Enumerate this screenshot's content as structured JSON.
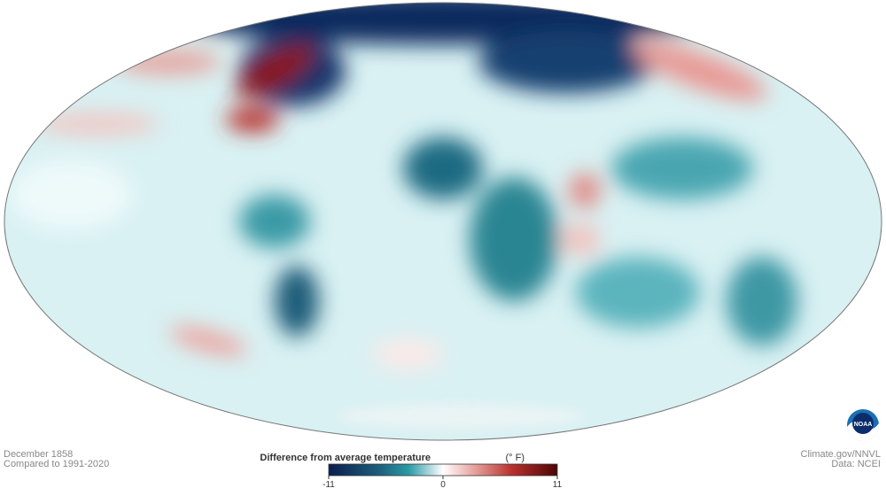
{
  "footer_left": {
    "date": "December 1858",
    "baseline": "Compared to 1991-2020"
  },
  "footer_right": {
    "credit": "Climate.gov/NNVL",
    "source": "Data: NCEI"
  },
  "logo": {
    "text": "NOAA"
  },
  "legend": {
    "title": "Difference from average temperature",
    "unit": "(° F)",
    "ticks": [
      -11,
      0,
      11
    ]
  }
}
